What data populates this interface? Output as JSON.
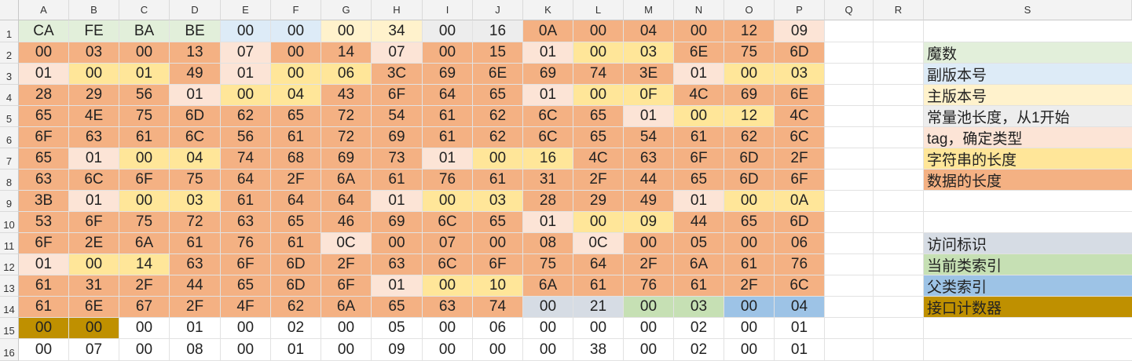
{
  "sheet": {
    "columns": [
      "A",
      "B",
      "C",
      "D",
      "E",
      "F",
      "G",
      "H",
      "I",
      "J",
      "K",
      "L",
      "M",
      "N",
      "O",
      "P",
      "Q",
      "R",
      "S"
    ],
    "rows": [
      "1",
      "2",
      "3",
      "4",
      "5",
      "6",
      "7",
      "8",
      "9",
      "10",
      "11",
      "12",
      "13",
      "14",
      "15",
      "16"
    ],
    "colors": {
      "g": "#e2efda",
      "b": "#ddebf7",
      "y": "#fff2cc",
      "gr": "#ededed",
      "p": "#fce4d6",
      "yy": "#ffe699",
      "o": "#f4b183",
      "s": "#d6dce4",
      "lg": "#c6e0b4",
      "bl": "#9dc3e6",
      "gd": "#bf9000",
      "w": "#ffffff"
    },
    "cells": [
      [
        [
          "CA",
          "g"
        ],
        [
          "FE",
          "g"
        ],
        [
          "BA",
          "g"
        ],
        [
          "BE",
          "g"
        ],
        [
          "00",
          "b"
        ],
        [
          "00",
          "b"
        ],
        [
          "00",
          "y"
        ],
        [
          "34",
          "y"
        ],
        [
          "00",
          "gr"
        ],
        [
          "16",
          "gr"
        ],
        [
          "0A",
          "o"
        ],
        [
          "00",
          "o"
        ],
        [
          "04",
          "o"
        ],
        [
          "00",
          "o"
        ],
        [
          "12",
          "o"
        ],
        [
          "09",
          "p"
        ]
      ],
      [
        [
          "00",
          "o"
        ],
        [
          "03",
          "o"
        ],
        [
          "00",
          "o"
        ],
        [
          "13",
          "o"
        ],
        [
          "07",
          "p"
        ],
        [
          "00",
          "o"
        ],
        [
          "14",
          "o"
        ],
        [
          "07",
          "p"
        ],
        [
          "00",
          "o"
        ],
        [
          "15",
          "o"
        ],
        [
          "01",
          "p"
        ],
        [
          "00",
          "yy"
        ],
        [
          "03",
          "yy"
        ],
        [
          "6E",
          "o"
        ],
        [
          "75",
          "o"
        ],
        [
          "6D",
          "o"
        ]
      ],
      [
        [
          "01",
          "p"
        ],
        [
          "00",
          "yy"
        ],
        [
          "01",
          "yy"
        ],
        [
          "49",
          "o"
        ],
        [
          "01",
          "p"
        ],
        [
          "00",
          "yy"
        ],
        [
          "06",
          "yy"
        ],
        [
          "3C",
          "o"
        ],
        [
          "69",
          "o"
        ],
        [
          "6E",
          "o"
        ],
        [
          "69",
          "o"
        ],
        [
          "74",
          "o"
        ],
        [
          "3E",
          "o"
        ],
        [
          "01",
          "p"
        ],
        [
          "00",
          "yy"
        ],
        [
          "03",
          "yy"
        ]
      ],
      [
        [
          "28",
          "o"
        ],
        [
          "29",
          "o"
        ],
        [
          "56",
          "o"
        ],
        [
          "01",
          "p"
        ],
        [
          "00",
          "yy"
        ],
        [
          "04",
          "yy"
        ],
        [
          "43",
          "o"
        ],
        [
          "6F",
          "o"
        ],
        [
          "64",
          "o"
        ],
        [
          "65",
          "o"
        ],
        [
          "01",
          "p"
        ],
        [
          "00",
          "yy"
        ],
        [
          "0F",
          "yy"
        ],
        [
          "4C",
          "o"
        ],
        [
          "69",
          "o"
        ],
        [
          "6E",
          "o"
        ]
      ],
      [
        [
          "65",
          "o"
        ],
        [
          "4E",
          "o"
        ],
        [
          "75",
          "o"
        ],
        [
          "6D",
          "o"
        ],
        [
          "62",
          "o"
        ],
        [
          "65",
          "o"
        ],
        [
          "72",
          "o"
        ],
        [
          "54",
          "o"
        ],
        [
          "61",
          "o"
        ],
        [
          "62",
          "o"
        ],
        [
          "6C",
          "o"
        ],
        [
          "65",
          "o"
        ],
        [
          "01",
          "p"
        ],
        [
          "00",
          "yy"
        ],
        [
          "12",
          "yy"
        ],
        [
          "4C",
          "o"
        ]
      ],
      [
        [
          "6F",
          "o"
        ],
        [
          "63",
          "o"
        ],
        [
          "61",
          "o"
        ],
        [
          "6C",
          "o"
        ],
        [
          "56",
          "o"
        ],
        [
          "61",
          "o"
        ],
        [
          "72",
          "o"
        ],
        [
          "69",
          "o"
        ],
        [
          "61",
          "o"
        ],
        [
          "62",
          "o"
        ],
        [
          "6C",
          "o"
        ],
        [
          "65",
          "o"
        ],
        [
          "54",
          "o"
        ],
        [
          "61",
          "o"
        ],
        [
          "62",
          "o"
        ],
        [
          "6C",
          "o"
        ]
      ],
      [
        [
          "65",
          "o"
        ],
        [
          "01",
          "p"
        ],
        [
          "00",
          "yy"
        ],
        [
          "04",
          "yy"
        ],
        [
          "74",
          "o"
        ],
        [
          "68",
          "o"
        ],
        [
          "69",
          "o"
        ],
        [
          "73",
          "o"
        ],
        [
          "01",
          "p"
        ],
        [
          "00",
          "yy"
        ],
        [
          "16",
          "yy"
        ],
        [
          "4C",
          "o"
        ],
        [
          "63",
          "o"
        ],
        [
          "6F",
          "o"
        ],
        [
          "6D",
          "o"
        ],
        [
          "2F",
          "o"
        ]
      ],
      [
        [
          "63",
          "o"
        ],
        [
          "6C",
          "o"
        ],
        [
          "6F",
          "o"
        ],
        [
          "75",
          "o"
        ],
        [
          "64",
          "o"
        ],
        [
          "2F",
          "o"
        ],
        [
          "6A",
          "o"
        ],
        [
          "61",
          "o"
        ],
        [
          "76",
          "o"
        ],
        [
          "61",
          "o"
        ],
        [
          "31",
          "o"
        ],
        [
          "2F",
          "o"
        ],
        [
          "44",
          "o"
        ],
        [
          "65",
          "o"
        ],
        [
          "6D",
          "o"
        ],
        [
          "6F",
          "o"
        ]
      ],
      [
        [
          "3B",
          "o"
        ],
        [
          "01",
          "p"
        ],
        [
          "00",
          "yy"
        ],
        [
          "03",
          "yy"
        ],
        [
          "61",
          "o"
        ],
        [
          "64",
          "o"
        ],
        [
          "64",
          "o"
        ],
        [
          "01",
          "p"
        ],
        [
          "00",
          "yy"
        ],
        [
          "03",
          "yy"
        ],
        [
          "28",
          "o"
        ],
        [
          "29",
          "o"
        ],
        [
          "49",
          "o"
        ],
        [
          "01",
          "p"
        ],
        [
          "00",
          "yy"
        ],
        [
          "0A",
          "yy"
        ]
      ],
      [
        [
          "53",
          "o"
        ],
        [
          "6F",
          "o"
        ],
        [
          "75",
          "o"
        ],
        [
          "72",
          "o"
        ],
        [
          "63",
          "o"
        ],
        [
          "65",
          "o"
        ],
        [
          "46",
          "o"
        ],
        [
          "69",
          "o"
        ],
        [
          "6C",
          "o"
        ],
        [
          "65",
          "o"
        ],
        [
          "01",
          "p"
        ],
        [
          "00",
          "yy"
        ],
        [
          "09",
          "yy"
        ],
        [
          "44",
          "o"
        ],
        [
          "65",
          "o"
        ],
        [
          "6D",
          "o"
        ]
      ],
      [
        [
          "6F",
          "o"
        ],
        [
          "2E",
          "o"
        ],
        [
          "6A",
          "o"
        ],
        [
          "61",
          "o"
        ],
        [
          "76",
          "o"
        ],
        [
          "61",
          "o"
        ],
        [
          "0C",
          "p"
        ],
        [
          "00",
          "o"
        ],
        [
          "07",
          "o"
        ],
        [
          "00",
          "o"
        ],
        [
          "08",
          "o"
        ],
        [
          "0C",
          "p"
        ],
        [
          "00",
          "o"
        ],
        [
          "05",
          "o"
        ],
        [
          "00",
          "o"
        ],
        [
          "06",
          "o"
        ]
      ],
      [
        [
          "01",
          "p"
        ],
        [
          "00",
          "yy"
        ],
        [
          "14",
          "yy"
        ],
        [
          "63",
          "o"
        ],
        [
          "6F",
          "o"
        ],
        [
          "6D",
          "o"
        ],
        [
          "2F",
          "o"
        ],
        [
          "63",
          "o"
        ],
        [
          "6C",
          "o"
        ],
        [
          "6F",
          "o"
        ],
        [
          "75",
          "o"
        ],
        [
          "64",
          "o"
        ],
        [
          "2F",
          "o"
        ],
        [
          "6A",
          "o"
        ],
        [
          "61",
          "o"
        ],
        [
          "76",
          "o"
        ]
      ],
      [
        [
          "61",
          "o"
        ],
        [
          "31",
          "o"
        ],
        [
          "2F",
          "o"
        ],
        [
          "44",
          "o"
        ],
        [
          "65",
          "o"
        ],
        [
          "6D",
          "o"
        ],
        [
          "6F",
          "o"
        ],
        [
          "01",
          "p"
        ],
        [
          "00",
          "yy"
        ],
        [
          "10",
          "yy"
        ],
        [
          "6A",
          "o"
        ],
        [
          "61",
          "o"
        ],
        [
          "76",
          "o"
        ],
        [
          "61",
          "o"
        ],
        [
          "2F",
          "o"
        ],
        [
          "6C",
          "o"
        ]
      ],
      [
        [
          "61",
          "o"
        ],
        [
          "6E",
          "o"
        ],
        [
          "67",
          "o"
        ],
        [
          "2F",
          "o"
        ],
        [
          "4F",
          "o"
        ],
        [
          "62",
          "o"
        ],
        [
          "6A",
          "o"
        ],
        [
          "65",
          "o"
        ],
        [
          "63",
          "o"
        ],
        [
          "74",
          "o"
        ],
        [
          "00",
          "s"
        ],
        [
          "21",
          "s"
        ],
        [
          "00",
          "lg"
        ],
        [
          "03",
          "lg"
        ],
        [
          "00",
          "bl"
        ],
        [
          "04",
          "bl"
        ]
      ],
      [
        [
          "00",
          "gd"
        ],
        [
          "00",
          "gd"
        ],
        [
          "00",
          "w"
        ],
        [
          "01",
          "w"
        ],
        [
          "00",
          "w"
        ],
        [
          "02",
          "w"
        ],
        [
          "00",
          "w"
        ],
        [
          "05",
          "w"
        ],
        [
          "00",
          "w"
        ],
        [
          "06",
          "w"
        ],
        [
          "00",
          "w"
        ],
        [
          "00",
          "w"
        ],
        [
          "00",
          "w"
        ],
        [
          "02",
          "w"
        ],
        [
          "00",
          "w"
        ],
        [
          "01",
          "w"
        ]
      ],
      [
        [
          "00",
          "w"
        ],
        [
          "07",
          "w"
        ],
        [
          "00",
          "w"
        ],
        [
          "08",
          "w"
        ],
        [
          "00",
          "w"
        ],
        [
          "01",
          "w"
        ],
        [
          "00",
          "w"
        ],
        [
          "09",
          "w"
        ],
        [
          "00",
          "w"
        ],
        [
          "00",
          "w"
        ],
        [
          "00",
          "w"
        ],
        [
          "38",
          "w"
        ],
        [
          "00",
          "w"
        ],
        [
          "02",
          "w"
        ],
        [
          "00",
          "w"
        ],
        [
          "01",
          "w"
        ]
      ]
    ],
    "legend": [
      {
        "row": 2,
        "text": "魔数",
        "color": "g"
      },
      {
        "row": 3,
        "text": "副版本号",
        "color": "b"
      },
      {
        "row": 4,
        "text": "主版本号",
        "color": "y"
      },
      {
        "row": 5,
        "text": "常量池长度，从1开始",
        "color": "gr"
      },
      {
        "row": 6,
        "text": "tag，确定类型",
        "color": "p"
      },
      {
        "row": 7,
        "text": "字符串的长度",
        "color": "yy"
      },
      {
        "row": 8,
        "text": "数据的长度",
        "color": "o"
      },
      {
        "row": 11,
        "text": "访问标识",
        "color": "s"
      },
      {
        "row": 12,
        "text": "当前类索引",
        "color": "lg"
      },
      {
        "row": 13,
        "text": "父类索引",
        "color": "bl"
      },
      {
        "row": 14,
        "text": "接口计数器",
        "color": "gd"
      }
    ]
  }
}
